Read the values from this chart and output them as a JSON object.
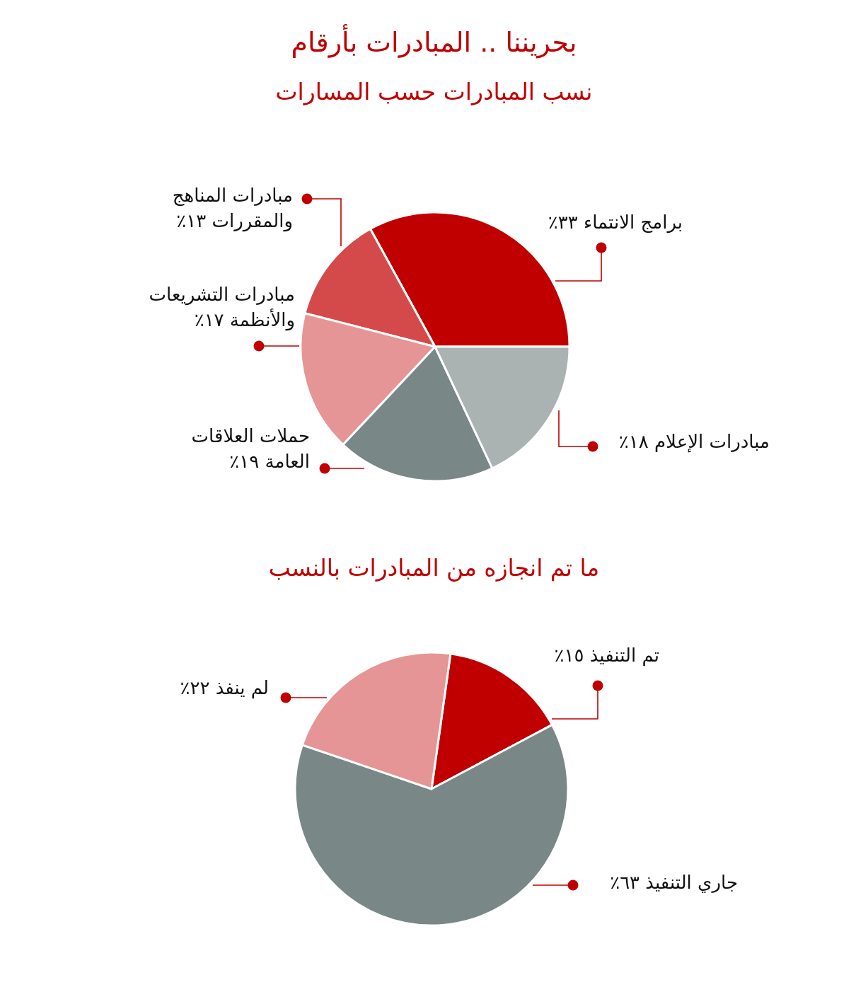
{
  "chart_data": [
    {
      "type": "pie",
      "title": "بحريننا .. المبادرات بأرقام",
      "subtitle": "نسب المبادرات حسب المسارات",
      "categories": [
        "برامج الانتماء",
        "مبادرات المناهج والمقررات",
        "مبادرات التشريعات والأنظمة",
        "حملات العلاقات العامة",
        "مبادرات الإعلام"
      ],
      "values": [
        33,
        13,
        17,
        19,
        18
      ],
      "value_labels": [
        "٣٣٪",
        "١٣٪",
        "١٧٪",
        "١٩٪",
        "١٨٪"
      ],
      "colors": [
        "#c00000",
        "#d44a4a",
        "#e59595",
        "#7a8787",
        "#abb2b2"
      ]
    },
    {
      "type": "pie",
      "title": "ما تم انجازه من المبادرات بالنسب",
      "categories": [
        "تم التنفيذ",
        "جاري التنفيذ",
        "لم ينفذ"
      ],
      "values": [
        15,
        63,
        22
      ],
      "value_labels": [
        "١٥٪",
        "٦٣٪",
        "٢٢٪"
      ],
      "colors": [
        "#c00000",
        "#7a8787",
        "#e59595"
      ]
    }
  ]
}
